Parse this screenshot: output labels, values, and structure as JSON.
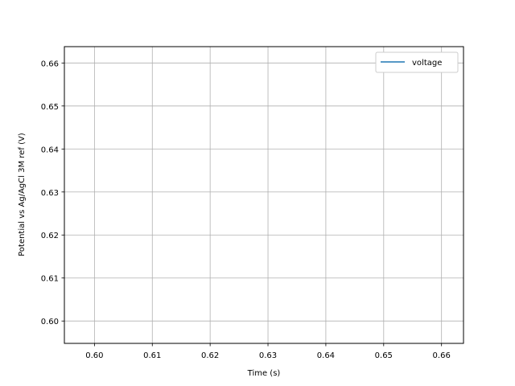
{
  "chart_data": {
    "type": "line",
    "title": "",
    "xlabel": "Time (s)",
    "ylabel": "Potential vs Ag/AgCl 3M ref (V)",
    "xlim": [
      0.5948,
      0.6638
    ],
    "ylim": [
      0.5948,
      0.6638
    ],
    "xticks": [
      0.6,
      0.61,
      0.62,
      0.63,
      0.64,
      0.65,
      0.66
    ],
    "yticks": [
      0.6,
      0.61,
      0.62,
      0.63,
      0.64,
      0.65,
      0.66
    ],
    "xtick_labels": [
      "0.60",
      "0.61",
      "0.62",
      "0.63",
      "0.64",
      "0.65",
      "0.66"
    ],
    "ytick_labels": [
      "0.60",
      "0.61",
      "0.62",
      "0.63",
      "0.64",
      "0.65",
      "0.66"
    ],
    "grid": true,
    "legend_position": "top-right",
    "series": [
      {
        "name": "voltage",
        "color": "#1f77b4",
        "x": [],
        "y": []
      }
    ]
  }
}
